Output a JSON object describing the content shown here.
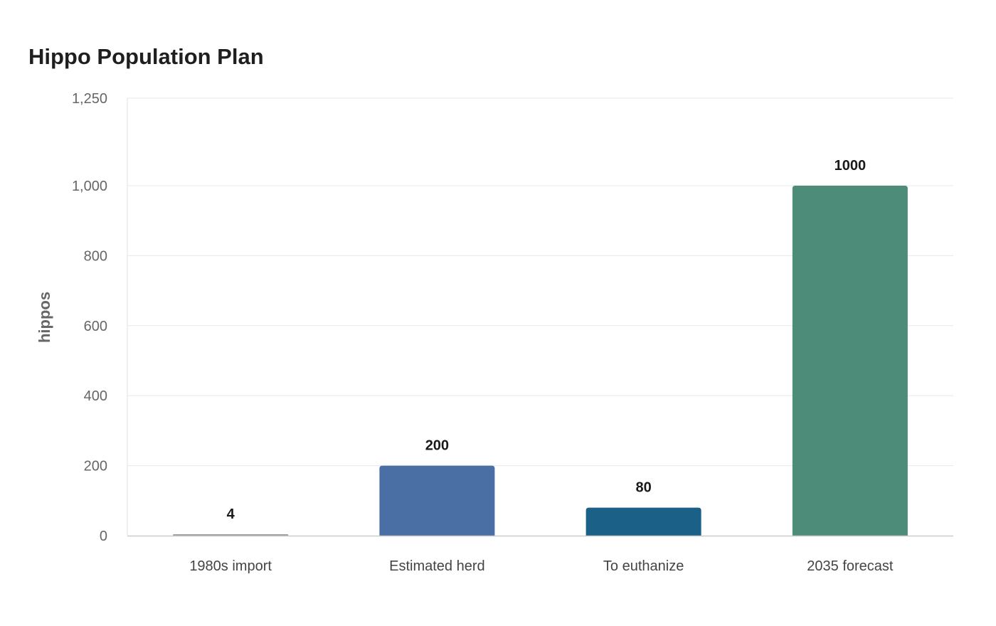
{
  "chart_data": {
    "type": "bar",
    "title": "Hippo Population Plan",
    "xlabel": "",
    "ylabel": "hippos",
    "categories": [
      "1980s import",
      "Estimated herd",
      "To euthanize",
      "2035 forecast"
    ],
    "values": [
      4,
      200,
      80,
      1000
    ],
    "data_labels": [
      "4",
      "200",
      "80",
      "1000"
    ],
    "colors": [
      "#9a9a9a",
      "#4a6fa5",
      "#1a6087",
      "#4e8c7a"
    ],
    "ylim": [
      0,
      1250
    ],
    "yticks": [
      0,
      200,
      400,
      600,
      800,
      1000,
      1250
    ],
    "ytick_labels": [
      "0",
      "200",
      "400",
      "600",
      "800",
      "1,000",
      "1,250"
    ],
    "grid": true,
    "legend": "none"
  }
}
